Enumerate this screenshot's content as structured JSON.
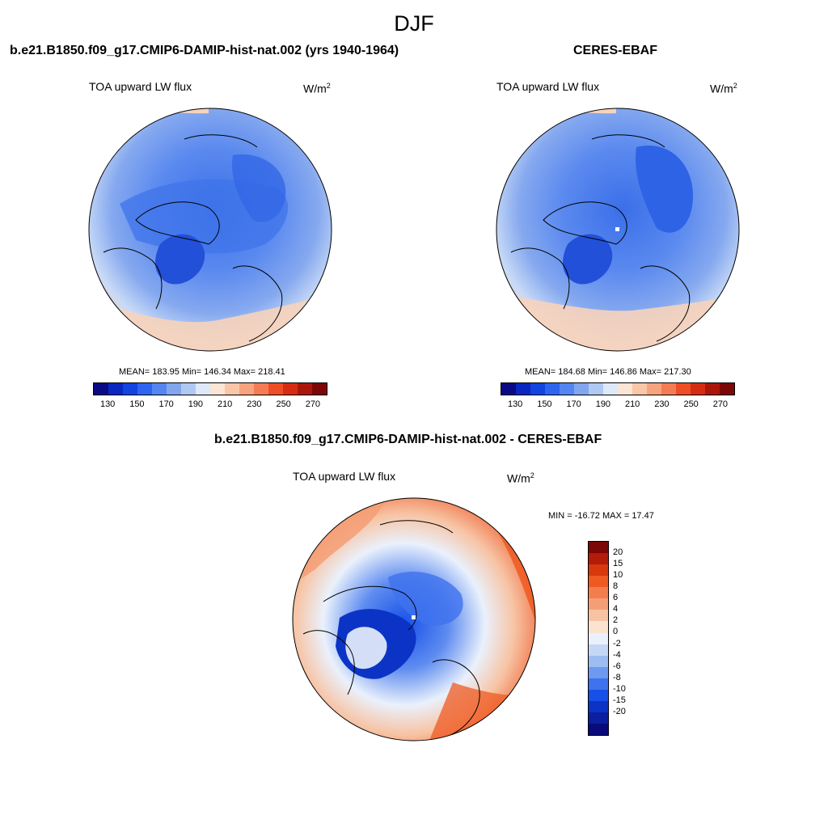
{
  "page": {
    "season": "DJF"
  },
  "panels": [
    {
      "title": "b.e21.B1850.f09_g17.CMIP6-DAMIP-hist-nat.002 (yrs 1940-1964)",
      "variable": "TOA upward LW flux",
      "units": "W/m",
      "units_exp": "2",
      "stats": "MEAN= 183.95  Min= 146.34  Max= 218.41",
      "mean": 183.95,
      "min": 146.34,
      "max": 218.41
    },
    {
      "title": "CERES-EBAF",
      "variable": "TOA upward LW flux",
      "units": "W/m",
      "units_exp": "2",
      "stats": "MEAN= 184.68  Min= 146.86  Max= 217.30",
      "mean": 184.68,
      "min": 146.86,
      "max": 217.3
    },
    {
      "title": "b.e21.B1850.f09_g17.CMIP6-DAMIP-hist-nat.002 - CERES-EBAF",
      "variable": "TOA upward LW flux",
      "units": "W/m",
      "units_exp": "2",
      "stats": "MIN = -16.72 MAX =  17.47",
      "min": -16.72,
      "max": 17.47
    }
  ],
  "colorbars": {
    "absolute": {
      "colors": [
        "#0a0a85",
        "#0a27c0",
        "#1144e0",
        "#2f64f0",
        "#5585f0",
        "#82a6ee",
        "#b0c9f3",
        "#dde9f9",
        "#fbe5d4",
        "#f9c7a8",
        "#f7a47e",
        "#f47c55",
        "#ee4e26",
        "#d62d12",
        "#aa170a",
        "#7b0806"
      ],
      "tick_labels": [
        "130",
        "150",
        "170",
        "190",
        "210",
        "230",
        "250",
        "270"
      ]
    },
    "difference": {
      "colors": [
        "#7b0806",
        "#b31c08",
        "#d7380c",
        "#ef5a22",
        "#f47d4e",
        "#f59e75",
        "#f7c3a3",
        "#fbe3d0",
        "#eaf1fc",
        "#c4d8f6",
        "#9cbcf2",
        "#6e99f0",
        "#3e72ee",
        "#1750e8",
        "#0b34c6",
        "#0b1fa0",
        "#0a0a7a"
      ],
      "tick_labels": [
        "20",
        "15",
        "10",
        "8",
        "6",
        "4",
        "2",
        "0",
        "-2",
        "-4",
        "-6",
        "-8",
        "-10",
        "-15",
        "-20"
      ]
    }
  }
}
